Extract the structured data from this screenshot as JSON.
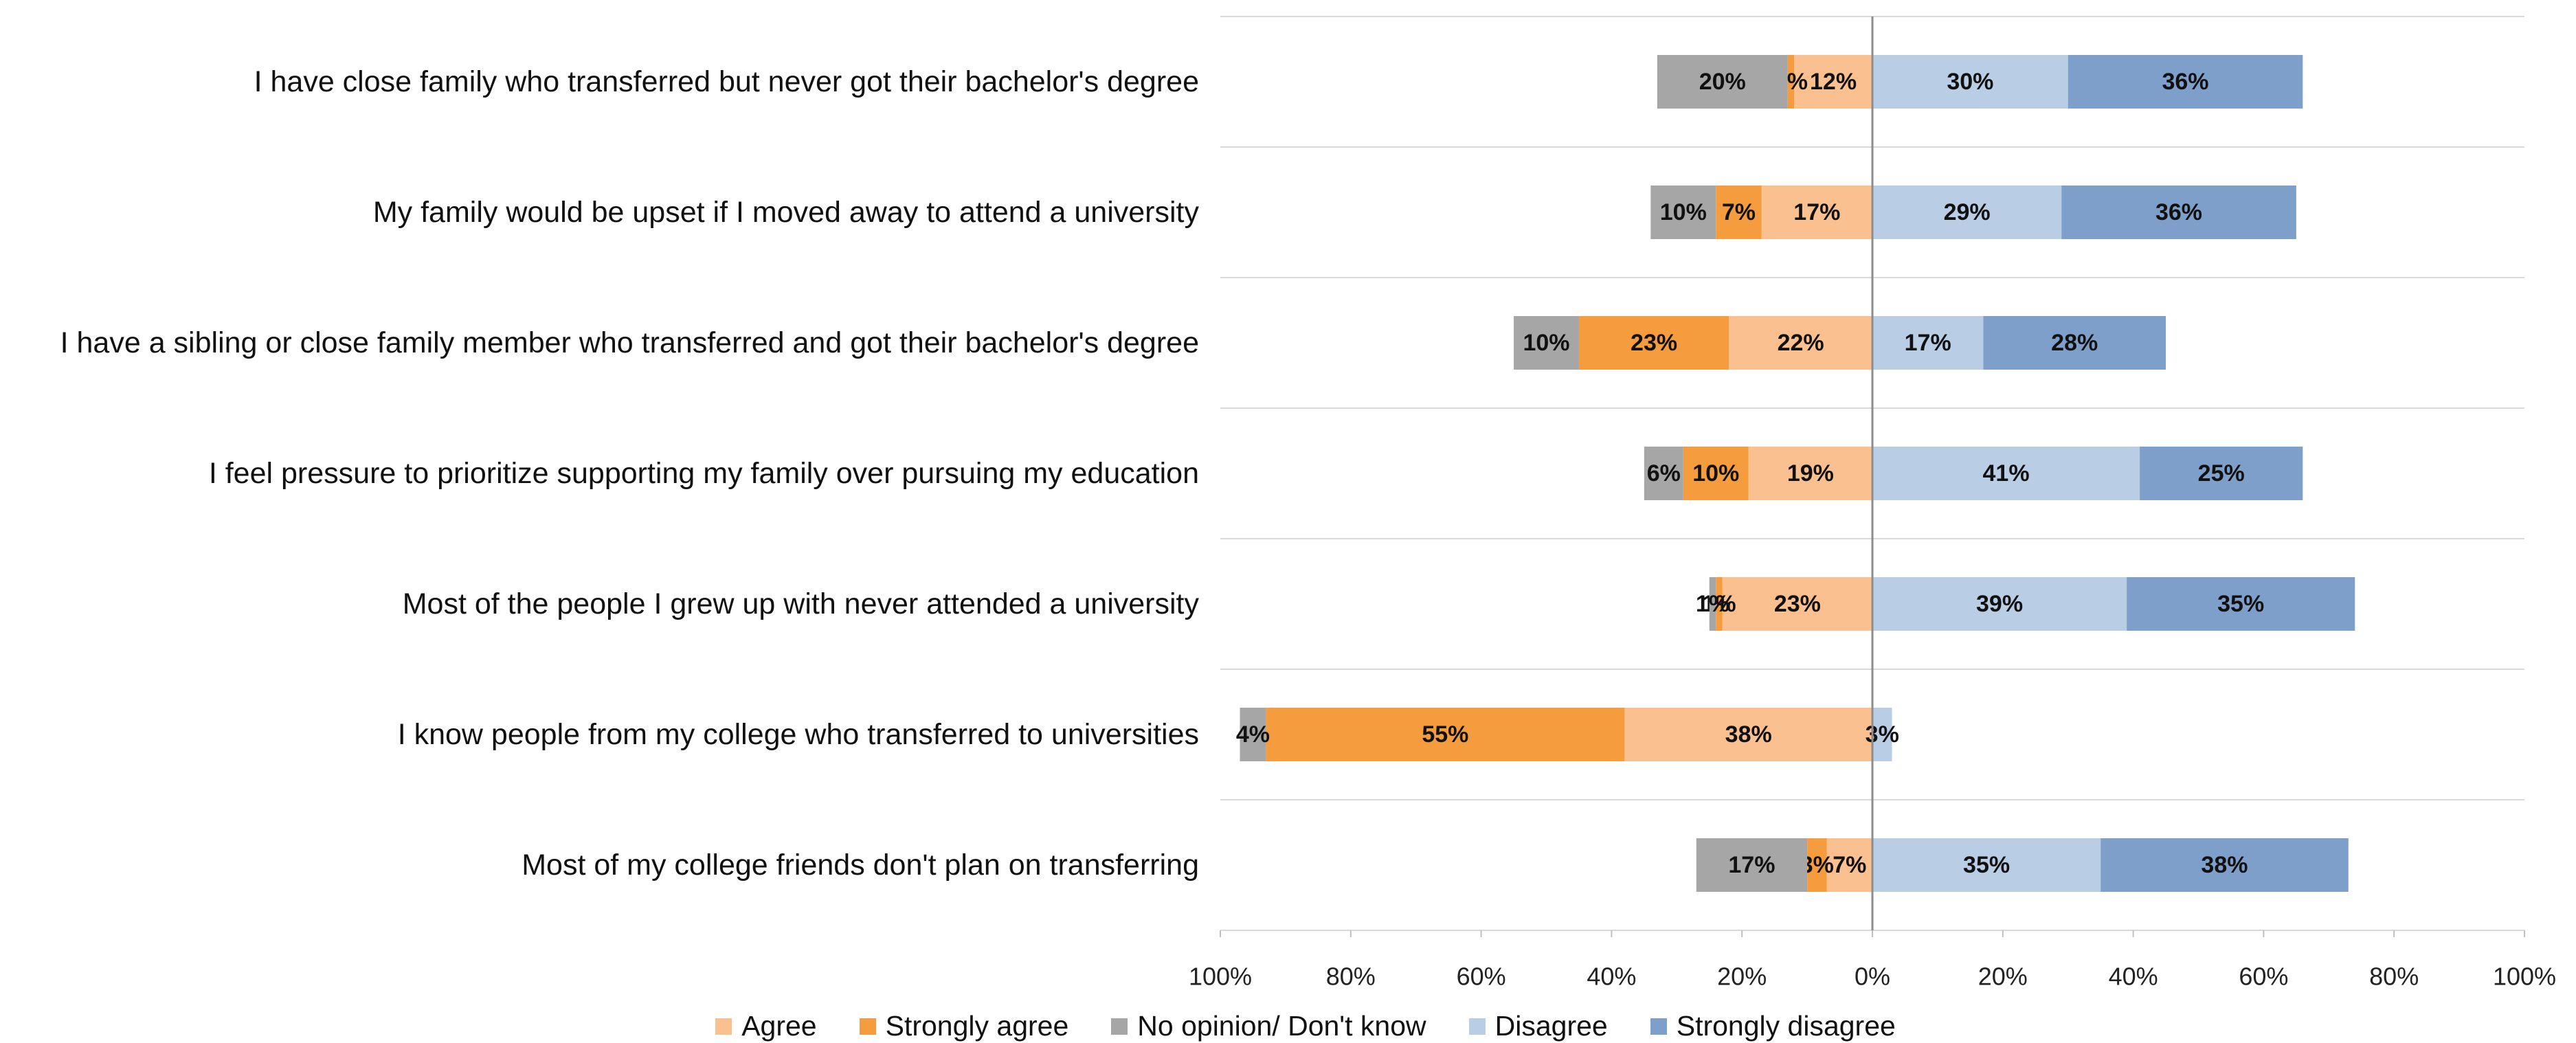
{
  "chart_data": {
    "type": "diverging-bar",
    "categories": [
      "I have close family who transferred but never got their bachelor's degree",
      "My family would be upset if I moved away to attend a university",
      "I have a sibling or close family member who transferred and got their bachelor's degree",
      "I feel pressure to prioritize supporting my family over pursuing my education",
      "Most of the people I grew up with never attended a university",
      "I know people from my college who transferred to universities",
      "Most of my college friends don't plan on transferring"
    ],
    "series": [
      {
        "name": "Agree",
        "color": "#fac090",
        "values": [
          12,
          17,
          22,
          19,
          23,
          38,
          7
        ],
        "value_labels": [
          "12%",
          "17%",
          "22%",
          "19%",
          "23%",
          "38%",
          "7%"
        ]
      },
      {
        "name": "Strongly agree",
        "color": "#f59d3e",
        "values": [
          1,
          7,
          23,
          10,
          1,
          55,
          3
        ],
        "value_labels": [
          "1%",
          "7%",
          "23%",
          "10%",
          "1%",
          "55%",
          "3%"
        ]
      },
      {
        "name": "No opinion/ Don't know",
        "color": "#a6a6a6",
        "values": [
          20,
          10,
          10,
          6,
          1,
          4,
          17
        ],
        "value_labels": [
          "20%",
          "10%",
          "10%",
          "6%",
          "1%",
          "4%",
          "17%"
        ]
      },
      {
        "name": "Disagree",
        "color": "#b9cde5",
        "values": [
          30,
          29,
          17,
          41,
          39,
          3,
          35
        ],
        "value_labels": [
          "30%",
          "29%",
          "17%",
          "41%",
          "39%",
          "3%",
          "35%"
        ]
      },
      {
        "name": "Strongly disagree",
        "color": "#7f9fcb",
        "values": [
          36,
          36,
          28,
          25,
          35,
          null,
          38
        ],
        "value_labels": [
          "36%",
          "36%",
          "28%",
          "25%",
          "35%",
          null,
          "38%"
        ]
      }
    ],
    "xlim": [
      -100,
      100
    ],
    "xticks": [
      {
        "value": -100,
        "label": "100%"
      },
      {
        "value": -80,
        "label": "80%"
      },
      {
        "value": -60,
        "label": "60%"
      },
      {
        "value": -40,
        "label": "40%"
      },
      {
        "value": -20,
        "label": "20%"
      },
      {
        "value": 0,
        "label": "0%"
      },
      {
        "value": 20,
        "label": "20%"
      },
      {
        "value": 40,
        "label": "40%"
      },
      {
        "value": 60,
        "label": "60%"
      },
      {
        "value": 80,
        "label": "80%"
      },
      {
        "value": 100,
        "label": "100%"
      }
    ]
  }
}
